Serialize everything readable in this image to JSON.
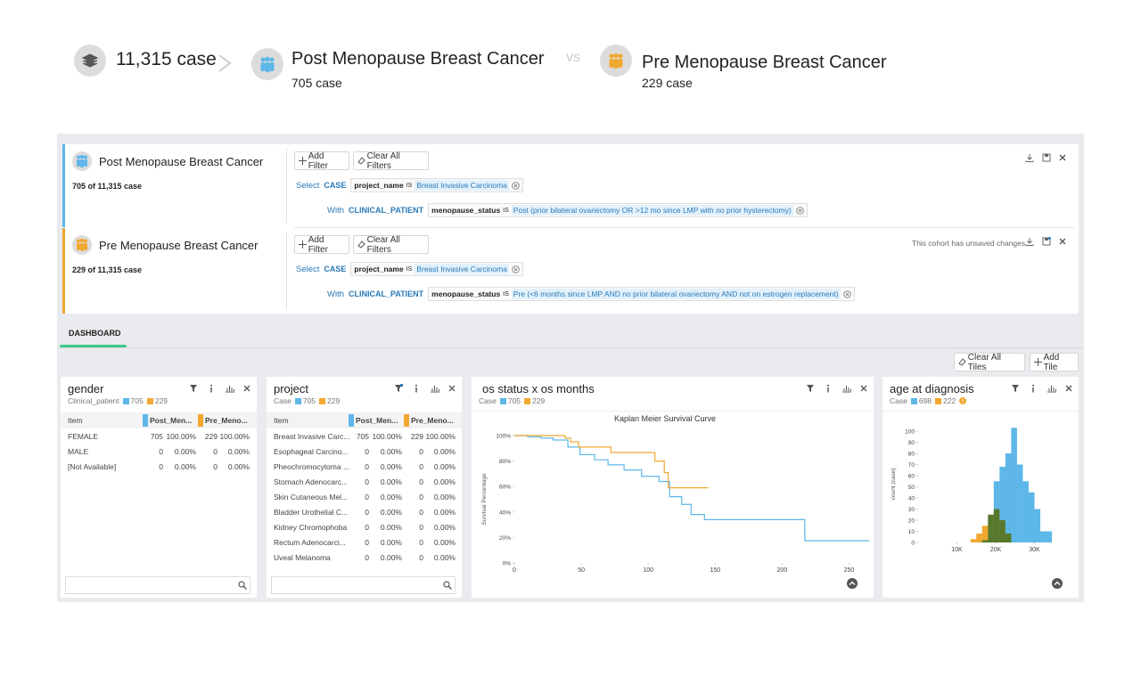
{
  "header": {
    "total": "11,315 case",
    "vs": "vs",
    "cohorts": [
      {
        "name": "Post Menopause Breast Cancer",
        "count": "705 case"
      },
      {
        "name": "Pre Menopause Breast Cancer",
        "count": "229 case"
      }
    ]
  },
  "cohorts": [
    {
      "name": "Post Menopause Breast Cancer",
      "summary": "705 of 11,315 case",
      "color": "#5db7e8",
      "add_filter": "Add Filter",
      "clear_filters": "Clear All Filters",
      "filters": [
        {
          "verb": "Select",
          "entity": "CASE",
          "field": "project_name",
          "op": "IS",
          "value": "Breast Invasive Carcinoma"
        },
        {
          "verb": "With",
          "entity": "CLINICAL_PATIENT",
          "field": "menopause_status",
          "op": "IS",
          "value": "Post (prior bilateral ovariectomy OR >12 mo since LMP with no prior hysterectomy)"
        }
      ]
    },
    {
      "name": "Pre Menopause Breast Cancer",
      "summary": "229 of 11,315 case",
      "color": "#f0a830",
      "add_filter": "Add Filter",
      "clear_filters": "Clear All Filters",
      "notice": "This cohort has unsaved changes",
      "filters": [
        {
          "verb": "Select",
          "entity": "CASE",
          "field": "project_name",
          "op": "IS",
          "value": "Breast Invasive Carcinoma"
        },
        {
          "verb": "With",
          "entity": "CLINICAL_PATIENT",
          "field": "menopause_status",
          "op": "IS",
          "value": "Pre (<6 months since LMP AND no prior bilateral ovariectomy AND not on estrogen replacement)"
        }
      ]
    }
  ],
  "dashboard": {
    "tab": "DASHBOARD",
    "clear_tiles": "Clear All Tiles",
    "add_tile": "Add Tile",
    "tiles": [
      {
        "title": "gender",
        "entity": "Clinical_patient",
        "legend": [
          {
            "name": "705",
            "color": "#5db7e8"
          },
          {
            "name": "229",
            "color": "#f0a830"
          }
        ],
        "table": {
          "columns": [
            "Item",
            "Post_Men...",
            "Pre_Meno..."
          ],
          "rows": [
            [
              "FEMALE",
              705,
              "100.00%",
              229,
              "100.00%"
            ],
            [
              "MALE",
              0,
              "0.00%",
              0,
              "0.00%"
            ],
            [
              "[Not Available]",
              0,
              "0.00%",
              0,
              "0.00%"
            ]
          ]
        }
      },
      {
        "title": "project",
        "entity": "Case",
        "legend": [
          {
            "name": "705",
            "color": "#5db7e8"
          },
          {
            "name": "229",
            "color": "#f0a830"
          }
        ],
        "table": {
          "columns": [
            "Item",
            "Post_Men...",
            "Pre_Meno..."
          ],
          "rows": [
            [
              "Breast Invasive Carc...",
              705,
              "100.00%",
              229,
              "100.00%"
            ],
            [
              "Esophageal Carcino...",
              0,
              "0.00%",
              0,
              "0.00%"
            ],
            [
              "Pheochromocytoma ...",
              0,
              "0.00%",
              0,
              "0.00%"
            ],
            [
              "Stomach Adenocarc...",
              0,
              "0.00%",
              0,
              "0.00%"
            ],
            [
              "Skin Cutaneous Mel...",
              0,
              "0.00%",
              0,
              "0.00%"
            ],
            [
              "Bladder Urothelial C...",
              0,
              "0.00%",
              0,
              "0.00%"
            ],
            [
              "Kidney Chromophoba",
              0,
              "0.00%",
              0,
              "0.00%"
            ],
            [
              "Rectum Adenocarci...",
              0,
              "0.00%",
              0,
              "0.00%"
            ],
            [
              "Uveal Melanoma",
              0,
              "0.00%",
              0,
              "0.00%"
            ]
          ]
        }
      },
      {
        "title": "os status x os months",
        "entity": "Case",
        "legend": [
          {
            "name": "705",
            "color": "#5db7e8"
          },
          {
            "name": "229",
            "color": "#f0a830"
          }
        ],
        "chart": {
          "type": "line",
          "step": true,
          "title": "Kaplan Meier Survival Curve",
          "y_label": "Survival Percentage",
          "xlim": [
            0,
            265
          ],
          "ylim": [
            0,
            100
          ],
          "xticks": [
            0,
            50,
            100,
            150,
            200,
            250
          ],
          "yticks": [
            {
              "value": 0,
              "label": "0%"
            },
            {
              "value": 20,
              "label": "20%"
            },
            {
              "value": 40,
              "label": "40%"
            },
            {
              "value": 60,
              "label": "60%"
            },
            {
              "value": 80,
              "label": "80%"
            },
            {
              "value": 100,
              "label": "100%"
            }
          ],
          "series": [
            {
              "color": "#5db7e8",
              "x": [
                0,
                10,
                20,
                29,
                40,
                49,
                60,
                70,
                82,
                95,
                108,
                116,
                125,
                132,
                142,
                217,
                265
              ],
              "values": [
                100,
                99,
                98,
                96.5,
                91,
                85,
                81,
                77,
                73,
                68,
                64,
                52,
                46,
                38,
                34,
                17.5,
                17.5
              ]
            },
            {
              "color": "#f0a830",
              "x": [
                0,
                38,
                42,
                48,
                72,
                95,
                105,
                112,
                115,
                145
              ],
              "values": [
                100,
                98,
                95,
                91,
                86.7,
                86.7,
                80,
                71,
                59,
                59
              ]
            }
          ]
        }
      },
      {
        "title": "age at diagnosis",
        "entity": "Case",
        "legend": [
          {
            "name": "698",
            "color": "#5db7e8"
          },
          {
            "name": "222",
            "color": "#f0a830"
          }
        ],
        "chart": {
          "type": "histogram",
          "y_label": "count (case)",
          "xlim": [
            0,
            40000
          ],
          "ylim": [
            0,
            105
          ],
          "xticks": [
            {
              "value": 10000,
              "label": "10K"
            },
            {
              "value": 20000,
              "label": "20K"
            },
            {
              "value": 30000,
              "label": "30K"
            }
          ],
          "yticks": [
            0,
            10,
            20,
            30,
            40,
            50,
            60,
            70,
            80,
            90,
            100
          ],
          "bins": [
            13500,
            15000,
            16500,
            18000,
            19500,
            21000,
            22500,
            24000,
            25500,
            27000,
            28500,
            30000,
            31500,
            33000,
            34500
          ],
          "series": [
            {
              "color": "#5db7e8",
              "values": [
                0,
                0,
                2,
                25,
                55,
                68,
                80,
                103,
                70,
                55,
                45,
                30,
                10,
                10
              ]
            },
            {
              "color": "#f0a830",
              "values": [
                3,
                8,
                15,
                25,
                30,
                20,
                8,
                0,
                0,
                0,
                0,
                0,
                0,
                0
              ]
            }
          ]
        }
      }
    ]
  }
}
